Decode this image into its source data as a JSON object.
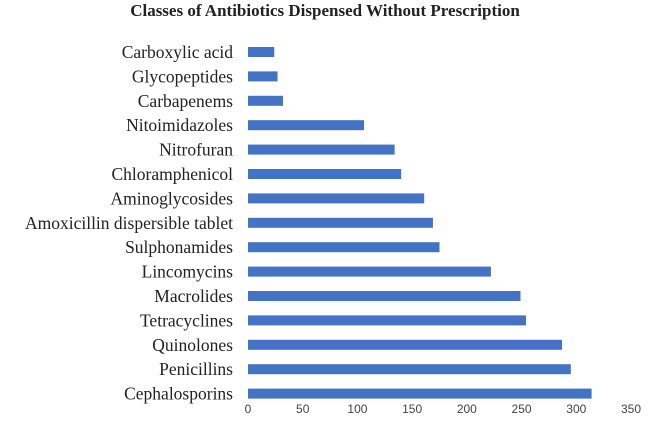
{
  "chart_data": {
    "type": "bar",
    "orientation": "horizontal",
    "title": "Classes of Antibiotics Dispensed Without Prescription",
    "xlabel": "",
    "ylabel": "",
    "categories": [
      "Carboxylic acid",
      "Glycopeptides",
      "Carbapenems",
      "Nitoimidazoles",
      "Nitrofuran",
      "Chloramphenicol",
      "Aminoglycosides",
      "Amoxicillin dispersible tablet",
      "Sulphonamides",
      "Lincomycins",
      "Macrolides",
      "Tetracyclines",
      "Quinolones",
      "Penicillins",
      "Cephalosporins"
    ],
    "values": [
      24,
      27,
      32,
      106,
      134,
      140,
      161,
      169,
      175,
      222,
      249,
      254,
      287,
      295,
      314
    ],
    "xlim": [
      0,
      350
    ],
    "xticks": [
      "0",
      "50",
      "100",
      "150",
      "200",
      "250",
      "300",
      "350"
    ],
    "grid": false,
    "legend": "none",
    "bar_color": "#4472C4"
  }
}
